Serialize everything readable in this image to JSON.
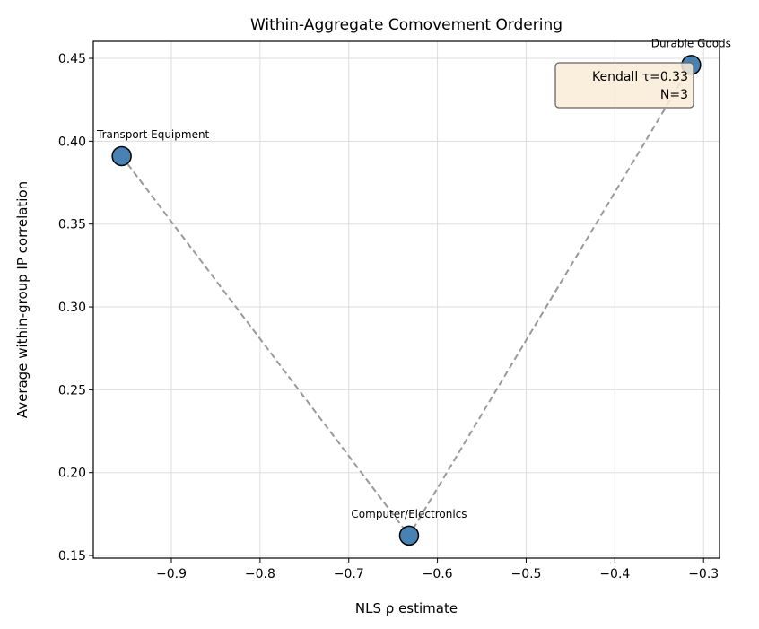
{
  "chart_data": {
    "type": "scatter",
    "title": "Within-Aggregate Comovement Ordering",
    "xlabel": "NLS ρ estimate",
    "ylabel": "Average within-group IP correlation",
    "xlim": [
      -0.988,
      -0.282
    ],
    "ylim": [
      0.1484,
      0.4603
    ],
    "xticks": [
      -0.9,
      -0.8,
      -0.7,
      -0.6,
      -0.5,
      -0.4,
      -0.3
    ],
    "xtick_labels": [
      "−0.9",
      "−0.8",
      "−0.7",
      "−0.6",
      "−0.5",
      "−0.4",
      "−0.3"
    ],
    "yticks": [
      0.15,
      0.2,
      0.25,
      0.3,
      0.35,
      0.4,
      0.45
    ],
    "ytick_labels": [
      "0.15",
      "0.20",
      "0.25",
      "0.30",
      "0.35",
      "0.40",
      "0.45"
    ],
    "grid": true,
    "points": [
      {
        "label": "Transport Equipment",
        "x": -0.956,
        "y": 0.391
      },
      {
        "label": "Computer/Electronics",
        "x": -0.632,
        "y": 0.162
      },
      {
        "label": "Durable Goods",
        "x": -0.314,
        "y": 0.446
      }
    ],
    "connecting_line": "dashed",
    "annotation": {
      "line1": "Kendall τ=0.33",
      "line2": "N=3",
      "placement": "top-right"
    },
    "colors": {
      "marker": "#4682b4",
      "marker_edge": "#000000",
      "line": "#999999",
      "annotation_bg": "#f9ebd6"
    }
  }
}
